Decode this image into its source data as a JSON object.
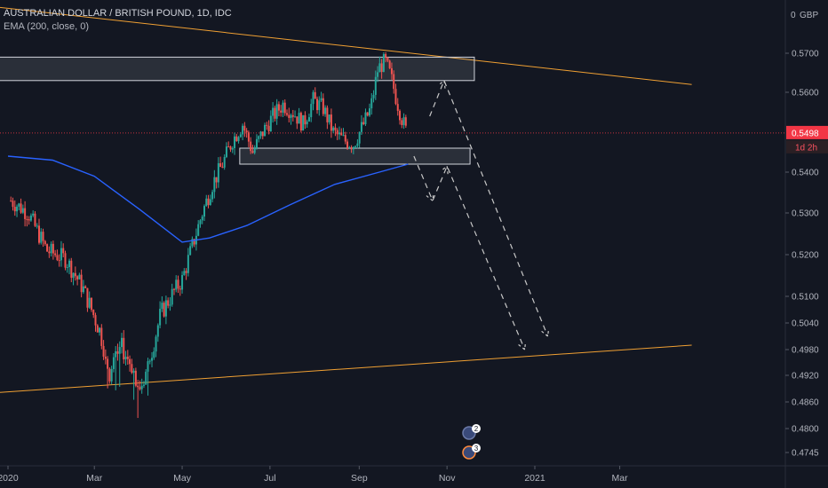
{
  "chart_data": {
    "type": "candlestick",
    "title": "AUSTRALIAN DOLLAR / BRITISH POUND, 1D, IDC",
    "indicator": "EMA (200, close, 0)",
    "currency": "GBP",
    "y_ticks": [
      "0.5700",
      "0.5600",
      "0.5400",
      "0.5300",
      "0.5200",
      "0.5100",
      "0.5040",
      "0.4980",
      "0.4920",
      "0.4860",
      "0.4800",
      "0.4745"
    ],
    "y_top_marker": "0",
    "x_ticks": [
      "2020",
      "Mar",
      "May",
      "Jul",
      "Sep",
      "Nov",
      "2021",
      "Mar"
    ],
    "current_price": "0.5498",
    "countdown": "1d 2h",
    "event_badges": [
      "2",
      "3"
    ],
    "colors": {
      "background": "#131722",
      "up": "#26a69a",
      "down": "#ef5350",
      "ema": "#2962ff",
      "trendline": "#f0a033",
      "zone": "#d1d4dc",
      "axis_text": "#b2b5be",
      "price_tag": "#f23645",
      "projection": "#c8c8c8"
    },
    "price_path": [
      [
        "2020-01-03",
        0.533
      ],
      [
        "2020-01-15",
        0.53
      ],
      [
        "2020-01-28",
        0.521
      ],
      [
        "2020-02-10",
        0.519
      ],
      [
        "2020-02-22",
        0.512
      ],
      [
        "2020-03-05",
        0.502
      ],
      [
        "2020-03-12",
        0.492
      ],
      [
        "2020-03-19",
        0.499
      ],
      [
        "2020-03-26",
        0.495
      ],
      [
        "2020-04-02",
        0.489
      ],
      [
        "2020-04-08",
        0.495
      ],
      [
        "2020-04-16",
        0.506
      ],
      [
        "2020-04-25",
        0.511
      ],
      [
        "2020-05-01",
        0.514
      ],
      [
        "2020-05-08",
        0.522
      ],
      [
        "2020-05-15",
        0.53
      ],
      [
        "2020-05-22",
        0.537
      ],
      [
        "2020-05-29",
        0.542
      ],
      [
        "2020-06-05",
        0.548
      ],
      [
        "2020-06-12",
        0.552
      ],
      [
        "2020-06-19",
        0.545
      ],
      [
        "2020-06-26",
        0.55
      ],
      [
        "2020-07-03",
        0.554
      ],
      [
        "2020-07-10",
        0.557
      ],
      [
        "2020-07-17",
        0.555
      ],
      [
        "2020-07-24",
        0.552
      ],
      [
        "2020-07-31",
        0.558
      ],
      [
        "2020-08-07",
        0.556
      ],
      [
        "2020-08-14",
        0.55
      ],
      [
        "2020-08-21",
        0.548
      ],
      [
        "2020-08-28",
        0.547
      ],
      [
        "2020-09-04",
        0.552
      ],
      [
        "2020-09-09",
        0.556
      ],
      [
        "2020-09-14",
        0.566
      ],
      [
        "2020-09-19",
        0.568
      ],
      [
        "2020-09-23",
        0.564
      ],
      [
        "2020-09-27",
        0.558
      ],
      [
        "2020-10-01",
        0.553
      ],
      [
        "2020-10-04",
        0.5498
      ]
    ],
    "ema_path": [
      [
        "2020-01-01",
        0.544
      ],
      [
        "2020-02-01",
        0.543
      ],
      [
        "2020-03-01",
        0.539
      ],
      [
        "2020-04-01",
        0.531
      ],
      [
        "2020-05-01",
        0.523
      ],
      [
        "2020-05-20",
        0.524
      ],
      [
        "2020-06-15",
        0.527
      ],
      [
        "2020-07-15",
        0.532
      ],
      [
        "2020-08-15",
        0.537
      ],
      [
        "2020-09-15",
        0.54
      ],
      [
        "2020-10-05",
        0.542
      ]
    ],
    "zones": [
      {
        "start": "2019-12-25",
        "end": "2020-11-20",
        "top": 0.569,
        "bottom": 0.563
      },
      {
        "start": "2020-06-10",
        "end": "2020-11-17",
        "top": 0.546,
        "bottom": 0.542
      }
    ],
    "trendlines": [
      {
        "p1": [
          "2019-12-20",
          0.582
        ],
        "p2": [
          "2021-04-20",
          0.562
        ]
      },
      {
        "p1": [
          "2019-12-20",
          0.488
        ],
        "p2": [
          "2021-04-20",
          0.499
        ]
      }
    ],
    "projection_paths": [
      [
        [
          "2020-10-09",
          0.544
        ],
        [
          "2020-10-22",
          0.533
        ],
        [
          "2020-11-01",
          0.5415
        ],
        [
          "2020-12-25",
          0.498
        ]
      ],
      [
        [
          "2020-10-20",
          0.554
        ],
        [
          "2020-10-30",
          0.563
        ],
        [
          "2021-01-10",
          0.501
        ]
      ]
    ]
  }
}
